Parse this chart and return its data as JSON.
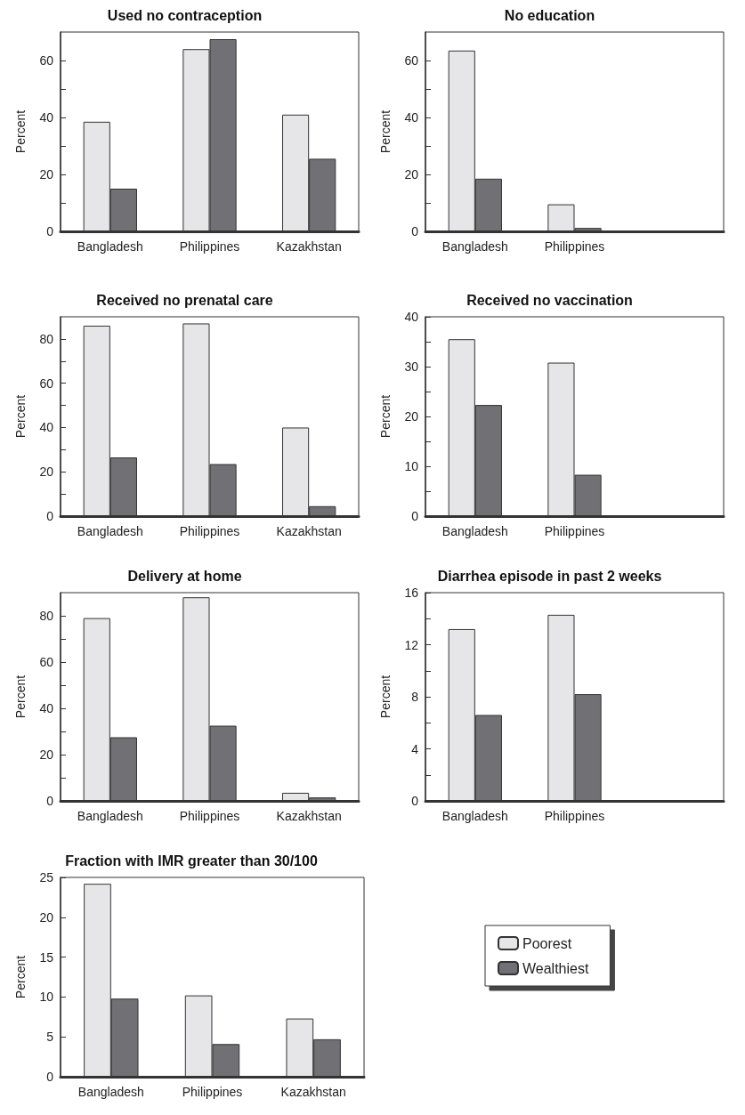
{
  "chart_data": [
    {
      "type": "bar",
      "title": "Used no contraception",
      "ylabel": "Percent",
      "categories": [
        "Bangladesh",
        "Philippines",
        "Kazakhstan"
      ],
      "series": [
        {
          "color": "#e6e6e8",
          "values": [
            38.5,
            64,
            41
          ]
        },
        {
          "color": "#707075",
          "values": [
            15,
            67.5,
            25.5
          ]
        }
      ],
      "ylim": [
        0,
        70
      ],
      "yticks": [
        0,
        {
          "value": 10,
          "label": null
        },
        20,
        {
          "value": 30,
          "label": null
        },
        40,
        {
          "value": 50,
          "label": null
        },
        60
      ],
      "grid": false,
      "legend": false
    },
    {
      "type": "bar",
      "title": "No education",
      "ylabel": "Percent",
      "categories": [
        "Bangladesh",
        "Philippines",
        null
      ],
      "series": [
        {
          "color": "#e6e6e8",
          "values": [
            63.5,
            9.5,
            null
          ]
        },
        {
          "color": "#707075",
          "values": [
            18.5,
            1.2,
            null
          ]
        }
      ],
      "ylim": [
        0,
        70
      ],
      "yticks": [
        0,
        {
          "value": 10,
          "label": null
        },
        20,
        {
          "value": 30,
          "label": null
        },
        40,
        {
          "value": 50,
          "label": null
        },
        60
      ],
      "grid": false,
      "legend": false
    },
    {
      "type": "bar",
      "title": "Received no prenatal care",
      "ylabel": "Percent",
      "categories": [
        "Bangladesh",
        "Philippines",
        "Kazakhstan"
      ],
      "series": [
        {
          "color": "#e6e6e8",
          "values": [
            86,
            87,
            40
          ]
        },
        {
          "color": "#707075",
          "values": [
            26.5,
            23.5,
            4.5
          ]
        }
      ],
      "ylim": [
        0,
        90
      ],
      "yticks": [
        0,
        {
          "value": 10,
          "label": null
        },
        20,
        {
          "value": 30,
          "label": null
        },
        40,
        {
          "value": 50,
          "label": null
        },
        60,
        {
          "value": 70,
          "label": null
        },
        80
      ],
      "grid": false,
      "legend": false
    },
    {
      "type": "bar",
      "title": "Received no vaccination",
      "ylabel": "Percent",
      "categories": [
        "Bangladesh",
        "Philippines",
        null
      ],
      "series": [
        {
          "color": "#e6e6e8",
          "values": [
            35.5,
            30.8,
            null
          ]
        },
        {
          "color": "#707075",
          "values": [
            22.3,
            8.3,
            null
          ]
        }
      ],
      "ylim": [
        0,
        40
      ],
      "yticks": [
        0,
        {
          "value": 5,
          "label": null
        },
        10,
        {
          "value": 15,
          "label": null
        },
        20,
        {
          "value": 25,
          "label": null
        },
        30,
        {
          "value": 35,
          "label": null
        },
        40
      ],
      "grid": false,
      "legend": false
    },
    {
      "type": "bar",
      "title": "Delivery at home",
      "ylabel": "Percent",
      "categories": [
        "Bangladesh",
        "Philippines",
        "Kazakhstan"
      ],
      "series": [
        {
          "color": "#e6e6e8",
          "values": [
            79,
            88,
            3.5
          ]
        },
        {
          "color": "#707075",
          "values": [
            27.5,
            32.5,
            1.5
          ]
        }
      ],
      "ylim": [
        0,
        90
      ],
      "yticks": [
        0,
        {
          "value": 10,
          "label": null
        },
        20,
        {
          "value": 30,
          "label": null
        },
        40,
        {
          "value": 50,
          "label": null
        },
        60,
        {
          "value": 70,
          "label": null
        },
        80
      ],
      "grid": false,
      "legend": false
    },
    {
      "type": "bar",
      "title": "Diarrhea episode in past 2 weeks",
      "ylabel": "Percent",
      "categories": [
        "Bangladesh",
        "Philippines",
        null
      ],
      "series": [
        {
          "color": "#e6e6e8",
          "values": [
            13.2,
            14.3,
            null
          ]
        },
        {
          "color": "#707075",
          "values": [
            6.6,
            8.2,
            null
          ]
        }
      ],
      "ylim": [
        0,
        16
      ],
      "yticks": [
        0,
        {
          "value": 2,
          "label": null
        },
        4,
        {
          "value": 6,
          "label": null
        },
        8,
        {
          "value": 10,
          "label": null
        },
        12,
        {
          "value": 14,
          "label": null
        },
        16
      ],
      "grid": false,
      "legend": false
    },
    {
      "type": "bar",
      "title": "Fraction with IMR greater than 30/100",
      "ylabel": "Percent",
      "categories": [
        "Bangladesh",
        "Philippines",
        "Kazakhstan"
      ],
      "series": [
        {
          "name": "Poorest",
          "color": "#e6e6e8",
          "values": [
            24.2,
            10.2,
            7.3
          ]
        },
        {
          "name": "Wealthiest",
          "color": "#707075",
          "values": [
            9.8,
            4.1,
            4.7
          ]
        }
      ],
      "ylim": [
        0,
        25
      ],
      "yticks": [
        0,
        5,
        10,
        15,
        20,
        25
      ],
      "grid": false,
      "legend": "right"
    }
  ]
}
